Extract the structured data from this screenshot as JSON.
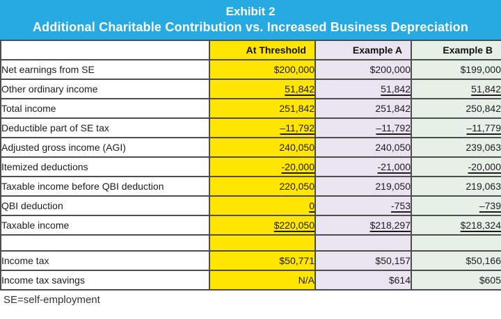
{
  "banner": {
    "line1": "Exhibit 2",
    "line2": "Additional Charitable Contribution vs. Increased Business Depreciation"
  },
  "table": {
    "columns": [
      "",
      "At Threshold",
      "Example A",
      "Example B"
    ],
    "rows": [
      {
        "label": "Net earnings from SE",
        "values": [
          "$200,000",
          "$200,000",
          "$199,000"
        ],
        "underline": false,
        "spacer": false
      },
      {
        "label": "Other ordinary income",
        "values": [
          "51,842",
          "51,842",
          "51,842"
        ],
        "underline": true,
        "spacer": false
      },
      {
        "label": "Total income",
        "values": [
          "251,842",
          "251,842",
          "250,842"
        ],
        "underline": false,
        "spacer": false
      },
      {
        "label": "Deductible part of SE tax",
        "values": [
          "–11,792",
          "–11,792",
          "–11,779"
        ],
        "underline": true,
        "spacer": false
      },
      {
        "label": "Adjusted gross income (AGI)",
        "values": [
          "240,050",
          "240,050",
          "239,063"
        ],
        "underline": false,
        "spacer": false
      },
      {
        "label": "Itemized deductions",
        "values": [
          "-20,000",
          "-21,000",
          "-20,000"
        ],
        "underline": true,
        "spacer": false
      },
      {
        "label": "Taxable income before QBI deduction",
        "values": [
          "220,050",
          "219,050",
          "219,063"
        ],
        "underline": false,
        "spacer": false
      },
      {
        "label": "QBI deduction",
        "values": [
          "0",
          "-753",
          "–739"
        ],
        "underline": true,
        "spacer": false
      },
      {
        "label": "Taxable income",
        "values": [
          "$220,050",
          "$218,297",
          "$218,324"
        ],
        "underline": true,
        "spacer": false
      },
      {
        "label": "",
        "values": [
          "",
          "",
          ""
        ],
        "underline": false,
        "spacer": true
      },
      {
        "label": "Income tax",
        "values": [
          "$50,771",
          "$50,157",
          "$50,166"
        ],
        "underline": false,
        "spacer": false
      },
      {
        "label": "Income tax savings",
        "values": [
          "N/A",
          "$614",
          "$605"
        ],
        "underline": false,
        "spacer": false
      }
    ]
  },
  "footnote": "SE=self-employment",
  "colors": {
    "banner_blue": "#27a9e1",
    "at_threshold_yellow": "#ffe500",
    "example_a_lavender": "#e8e5f0",
    "example_b_green": "#e7f0e7",
    "border_gray": "#4d4d4d"
  }
}
